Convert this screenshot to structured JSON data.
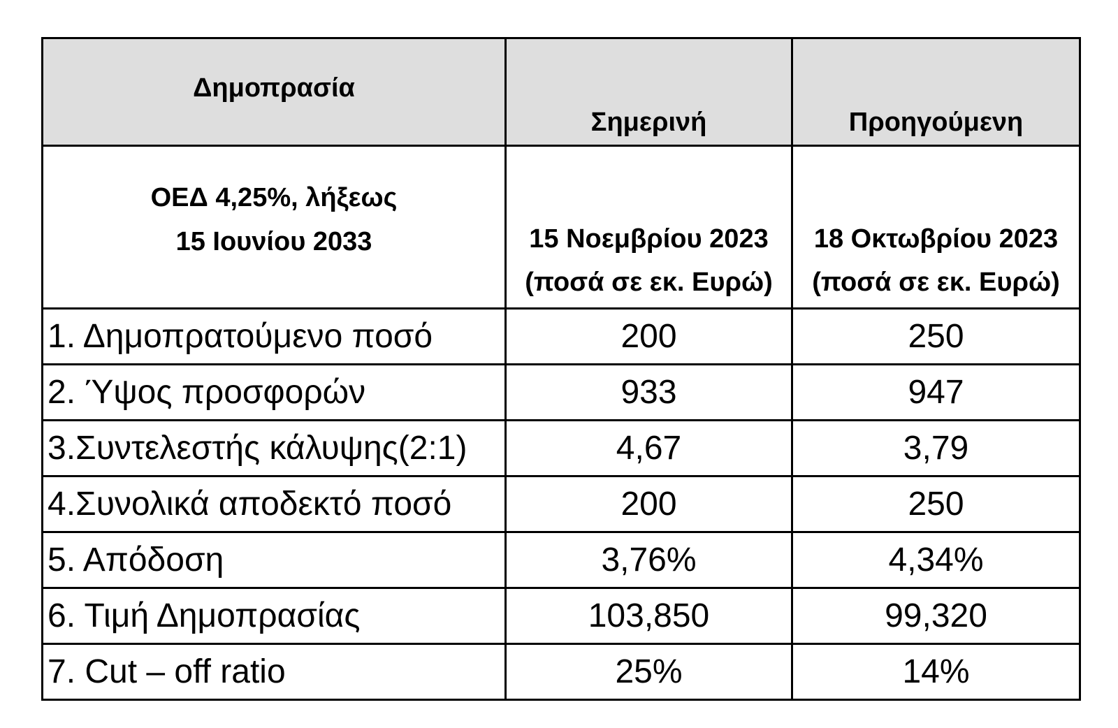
{
  "header": {
    "col1": "Δημοπρασία",
    "col2": "Σημερινή",
    "col3": "Προηγούμενη"
  },
  "subheader": {
    "bond_line1": "ΟΕΔ 4,25%, λήξεως",
    "bond_line2": "15 Ιουνίου 2033",
    "current_date": "15 Νοεμβρίου 2023",
    "current_unit": "(ποσά σε εκ. Ευρώ)",
    "previous_date": "18 Οκτωβρίου 2023",
    "previous_unit": "(ποσά σε εκ. Ευρώ)"
  },
  "rows": [
    {
      "label": "1. Δημοπρατούμενο ποσό",
      "current": "200",
      "previous": "250"
    },
    {
      "label": "2. Ύψος προσφορών",
      "current": "933",
      "previous": "947"
    },
    {
      "label": "3.Συντελεστής κάλυψης(2:1)",
      "current": "4,67",
      "previous": "3,79"
    },
    {
      "label": "4.Συνολικά αποδεκτό ποσό",
      "current": "200",
      "previous": "250"
    },
    {
      "label": "5. Απόδοση",
      "current": "3,76%",
      "previous": "4,34%"
    },
    {
      "label": "6. Τιμή Δημοπρασίας",
      "current": "103,850",
      "previous": "99,320"
    },
    {
      "label": "7. Cut – off ratio",
      "current": "25%",
      "previous": "14%"
    }
  ]
}
